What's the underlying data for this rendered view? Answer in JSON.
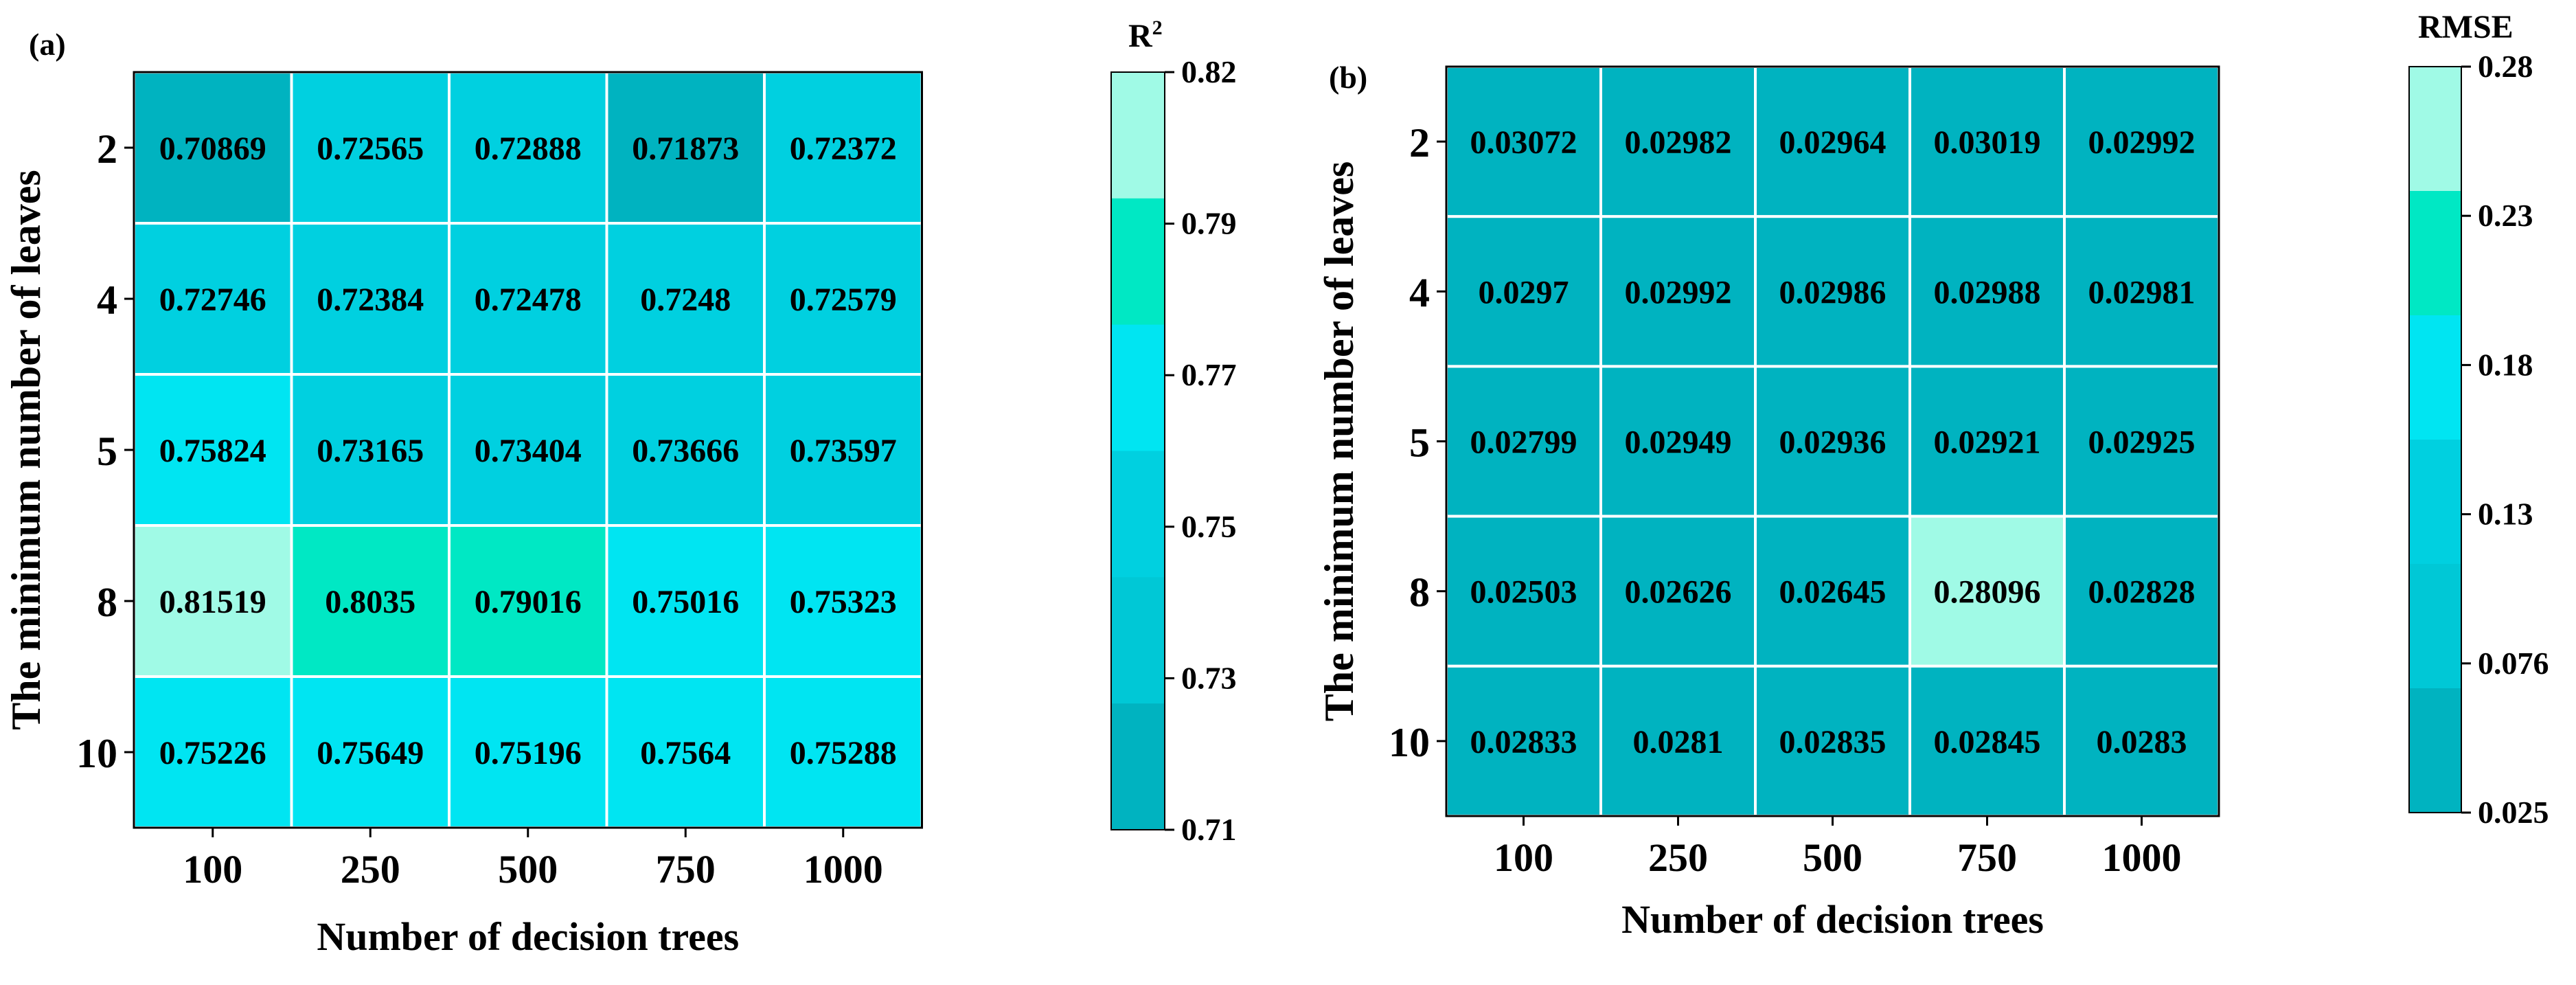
{
  "chart_data": [
    {
      "type": "heatmap",
      "panel_label": "(a)",
      "title": "",
      "xlabel": "Number of decision trees",
      "ylabel": "The minimum number of leaves",
      "x_categories": [
        "100",
        "250",
        "500",
        "750",
        "1000"
      ],
      "y_categories": [
        "2",
        "4",
        "5",
        "8",
        "10"
      ],
      "values": [
        [
          0.70869,
          0.72565,
          0.72888,
          0.71873,
          0.72372
        ],
        [
          0.72746,
          0.72384,
          0.72478,
          0.7248,
          0.72579
        ],
        [
          0.75824,
          0.73165,
          0.73404,
          0.73666,
          0.73597
        ],
        [
          0.81519,
          0.8035,
          0.79016,
          0.75016,
          0.75323
        ],
        [
          0.75226,
          0.75649,
          0.75196,
          0.7564,
          0.75288
        ]
      ],
      "cell_labels": [
        [
          "0.70869",
          "0.72565",
          "0.72888",
          "0.71873",
          "0.72372"
        ],
        [
          "0.72746",
          "0.72384",
          "0.72478",
          "0.7248",
          "0.72579"
        ],
        [
          "0.75824",
          "0.73165",
          "0.73404",
          "0.73666",
          "0.73597"
        ],
        [
          "0.81519",
          "0.8035",
          "0.79016",
          "0.75016",
          "0.75323"
        ],
        [
          "0.75226",
          "0.75649",
          "0.75196",
          "0.7564",
          "0.75288"
        ]
      ],
      "cell_colors": [
        [
          "#00B3C0",
          "#00D0E0",
          "#00D0E0",
          "#00B3C0",
          "#00D0E0"
        ],
        [
          "#00D0E0",
          "#00D0E0",
          "#00D0E0",
          "#00D0E0",
          "#00D0E0"
        ],
        [
          "#00E5F2",
          "#00D0E0",
          "#00D0E0",
          "#00D0E0",
          "#00D0E0"
        ],
        [
          "#A0FAE6",
          "#00E8C4",
          "#00E8C4",
          "#00E5F2",
          "#00E5F2"
        ],
        [
          "#00E5F2",
          "#00E5F2",
          "#00E5F2",
          "#00E5F2",
          "#00E5F2"
        ]
      ],
      "colorbar": {
        "title_base": "R",
        "title_sup": "2",
        "ticks": [
          "0.82",
          "0.79",
          "0.77",
          "0.75",
          "0.73",
          "0.71"
        ],
        "bands_top_to_bottom": [
          "#A0FAE6",
          "#00E8C4",
          "#00E5F2",
          "#00D0E0",
          "#00C8D6",
          "#00B3C0"
        ]
      }
    },
    {
      "type": "heatmap",
      "panel_label": "(b)",
      "title": "",
      "xlabel": "Number of decision trees",
      "ylabel": "The minimum number of leaves",
      "x_categories": [
        "100",
        "250",
        "500",
        "750",
        "1000"
      ],
      "y_categories": [
        "2",
        "4",
        "5",
        "8",
        "10"
      ],
      "values": [
        [
          0.03072,
          0.02982,
          0.02964,
          0.03019,
          0.02992
        ],
        [
          0.0297,
          0.02992,
          0.02986,
          0.02988,
          0.02981
        ],
        [
          0.02799,
          0.02949,
          0.02936,
          0.02921,
          0.02925
        ],
        [
          0.02503,
          0.02626,
          0.02645,
          0.28096,
          0.02828
        ],
        [
          0.02833,
          0.0281,
          0.02835,
          0.02845,
          0.0283
        ]
      ],
      "cell_labels": [
        [
          "0.03072",
          "0.02982",
          "0.02964",
          "0.03019",
          "0.02992"
        ],
        [
          "0.0297",
          "0.02992",
          "0.02986",
          "0.02988",
          "0.02981"
        ],
        [
          "0.02799",
          "0.02949",
          "0.02936",
          "0.02921",
          "0.02925"
        ],
        [
          "0.02503",
          "0.02626",
          "0.02645",
          "0.28096",
          "0.02828"
        ],
        [
          "0.02833",
          "0.0281",
          "0.02835",
          "0.02845",
          "0.0283"
        ]
      ],
      "cell_colors": [
        [
          "#00B3C0",
          "#00B3C0",
          "#00B3C0",
          "#00B3C0",
          "#00B3C0"
        ],
        [
          "#00B3C0",
          "#00B3C0",
          "#00B3C0",
          "#00B3C0",
          "#00B3C0"
        ],
        [
          "#00B3C0",
          "#00B3C0",
          "#00B3C0",
          "#00B3C0",
          "#00B3C0"
        ],
        [
          "#00B3C0",
          "#00B3C0",
          "#00B3C0",
          "#A0FAE6",
          "#00B3C0"
        ],
        [
          "#00B3C0",
          "#00B3C0",
          "#00B3C0",
          "#00B3C0",
          "#00B3C0"
        ]
      ],
      "colorbar": {
        "title_base": "RMSE",
        "title_sup": "",
        "ticks": [
          "0.28",
          "0.23",
          "0.18",
          "0.13",
          "0.076",
          "0.025"
        ],
        "bands_top_to_bottom": [
          "#A0FAE6",
          "#00E8C4",
          "#00E5F2",
          "#00D0E0",
          "#00C8D6",
          "#00B3C0"
        ]
      }
    }
  ]
}
